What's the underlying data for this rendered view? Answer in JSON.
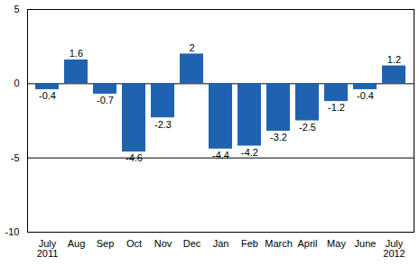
{
  "chart_data": {
    "type": "bar",
    "categories": [
      "July\n2011",
      "Aug",
      "Sep",
      "Oct",
      "Nov",
      "Dec",
      "Jan",
      "Feb",
      "March",
      "April",
      "May",
      "June",
      "July\n2012"
    ],
    "values": [
      -0.4,
      1.6,
      -0.7,
      -4.6,
      -2.3,
      2,
      -4.4,
      -4.2,
      -3.2,
      -2.5,
      -1.2,
      -0.4,
      1.2
    ],
    "color": "#1f63b0",
    "ylim": [
      -10,
      5
    ],
    "yticks": [
      -10,
      -5,
      0,
      5
    ],
    "grid": true,
    "data_labels": true
  }
}
